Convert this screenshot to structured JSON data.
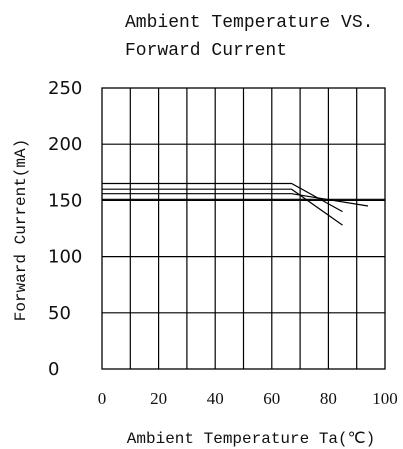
{
  "chart_data": {
    "type": "line",
    "title_lines": [
      "Ambient Temperature VS.",
      "Forward Current"
    ],
    "xlabel": "Ambient Temperature Ta(℃)",
    "ylabel": "Forward Current(mA)",
    "xlim": [
      0,
      100
    ],
    "ylim": [
      0,
      250
    ],
    "x_ticks": [
      0,
      20,
      40,
      60,
      80,
      100
    ],
    "y_ticks": [
      0,
      50,
      100,
      150,
      200,
      250
    ],
    "x_tick_labels": [
      "0",
      "20",
      "40",
      "60",
      "80",
      "100"
    ],
    "y_tick_labels": [
      "0",
      "50",
      "100",
      "150",
      "200",
      "250"
    ],
    "grid": true,
    "series": [
      {
        "x": [
          0,
          67,
          85
        ],
        "y": [
          165,
          165,
          140
        ]
      },
      {
        "x": [
          0,
          67,
          85
        ],
        "y": [
          160,
          160,
          128
        ]
      },
      {
        "x": [
          0,
          67,
          94
        ],
        "y": [
          156,
          156,
          145
        ]
      },
      {
        "x": [
          0,
          100
        ],
        "y": [
          151,
          151
        ]
      }
    ]
  }
}
